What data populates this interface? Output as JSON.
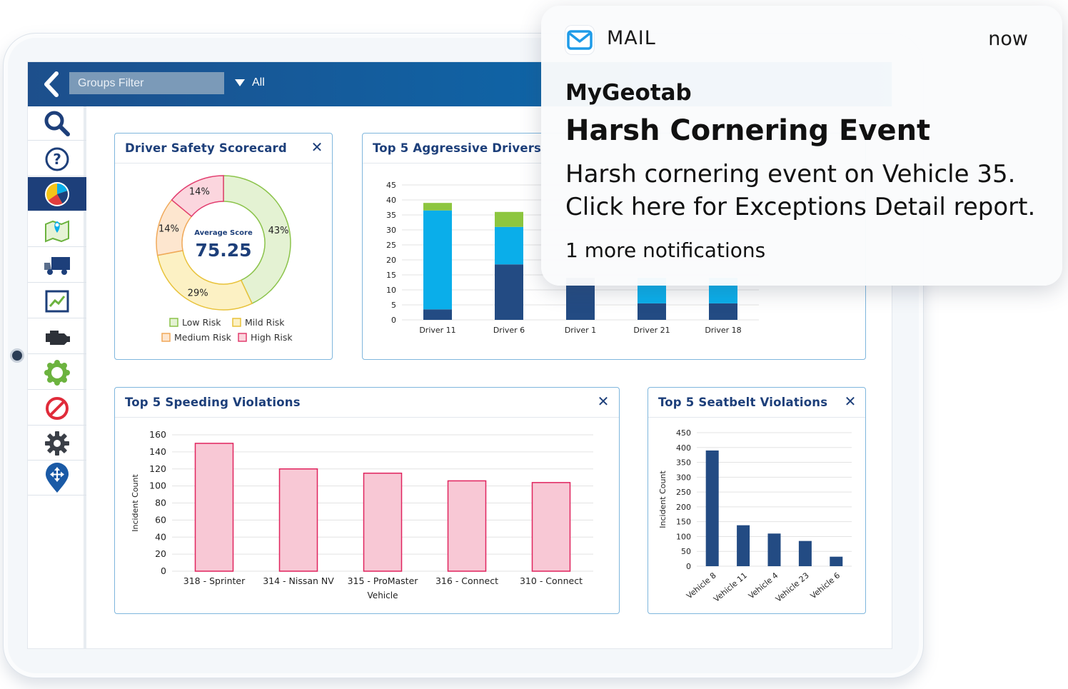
{
  "topbar": {
    "groups_filter_placeholder": "Groups Filter",
    "filter_value": "All"
  },
  "sidebar": {
    "items": [
      {
        "icon": "search-icon"
      },
      {
        "icon": "help-icon"
      },
      {
        "icon": "dashboard-pie-icon",
        "active": true
      },
      {
        "icon": "map-icon"
      },
      {
        "icon": "truck-icon"
      },
      {
        "icon": "trending-chart-icon"
      },
      {
        "icon": "engine-icon"
      },
      {
        "icon": "gear-cog-icon"
      },
      {
        "icon": "no-entry-icon"
      },
      {
        "icon": "settings-icon"
      },
      {
        "icon": "navigation-pin-icon"
      }
    ]
  },
  "scorecard": {
    "title": "Driver Safety Scorecard",
    "avg_label": "Average Score",
    "avg_value": "75.25",
    "chart_data": {
      "type": "pie",
      "slices": [
        {
          "label": "Low Risk",
          "value": 43,
          "text": "43%",
          "fill": "#e4f2d3",
          "stroke": "#8bc34a"
        },
        {
          "label": "Mild Risk",
          "value": 29,
          "text": "29%",
          "fill": "#fcf1c4",
          "stroke": "#e8c23a"
        },
        {
          "label": "Medium Risk",
          "value": 14,
          "text": "14%",
          "fill": "#fde6cf",
          "stroke": "#f0a95a"
        },
        {
          "label": "High Risk",
          "value": 14,
          "text": "14%",
          "fill": "#fbd6de",
          "stroke": "#e23d6f"
        }
      ],
      "legend": [
        "Low Risk",
        "Mild Risk",
        "Medium Risk",
        "High Risk"
      ]
    }
  },
  "aggressive": {
    "title": "Top 5 Aggressive Drivers",
    "chart_data": {
      "type": "bar",
      "stacked": true,
      "categories": [
        "Driver 11",
        "Driver 6",
        "Driver 1",
        "Driver 21",
        "Driver 18"
      ],
      "ylim": [
        0,
        45
      ],
      "yticks": [
        0,
        5,
        10,
        15,
        20,
        25,
        30,
        35,
        40,
        45
      ],
      "series": [
        {
          "color": "#234b83",
          "values": [
            3.5,
            18.5,
            14,
            5.5,
            5.5
          ]
        },
        {
          "color": "#0aaeea",
          "values": [
            33,
            12.5,
            0,
            8.5,
            8.5
          ]
        },
        {
          "color": "#8dc63f",
          "values": [
            2.5,
            5,
            0,
            0,
            0
          ]
        }
      ]
    }
  },
  "speeding": {
    "title": "Top 5 Speeding Violations",
    "chart_data": {
      "type": "bar",
      "categories": [
        "318 - Sprinter",
        "314 - Nissan NV",
        "315 - ProMaster",
        "316 - Connect",
        "310 - Connect"
      ],
      "values": [
        150,
        120,
        115,
        106,
        104
      ],
      "ylim": [
        0,
        160
      ],
      "yticks": [
        0,
        20,
        40,
        60,
        80,
        100,
        120,
        140,
        160
      ],
      "xlabel": "Vehicle",
      "ylabel": "Incident Count",
      "fill": "#f8c8d5",
      "stroke": "#e0245e"
    }
  },
  "seatbelt": {
    "title": "Top 5 Seatbelt Violations",
    "chart_data": {
      "type": "bar",
      "categories": [
        "Vehicle 8",
        "Vehicle 11",
        "Vehicle 4",
        "Vehicle 23",
        "Vehicle 6"
      ],
      "values": [
        390,
        138,
        110,
        85,
        32
      ],
      "ylim": [
        0,
        450
      ],
      "yticks": [
        0,
        50,
        100,
        150,
        200,
        250,
        300,
        350,
        400,
        450
      ],
      "ylabel": "Incident Count",
      "color": "#234b83"
    }
  },
  "notification": {
    "app": "MAIL",
    "time": "now",
    "sender": "MyGeotab",
    "title": "Harsh Cornering Event",
    "body_line1": "Harsh cornering event on Vehicle 35.",
    "body_line2": "Click here for Exceptions Detail report.",
    "more": "1 more notifications"
  },
  "close_symbol": "✕"
}
